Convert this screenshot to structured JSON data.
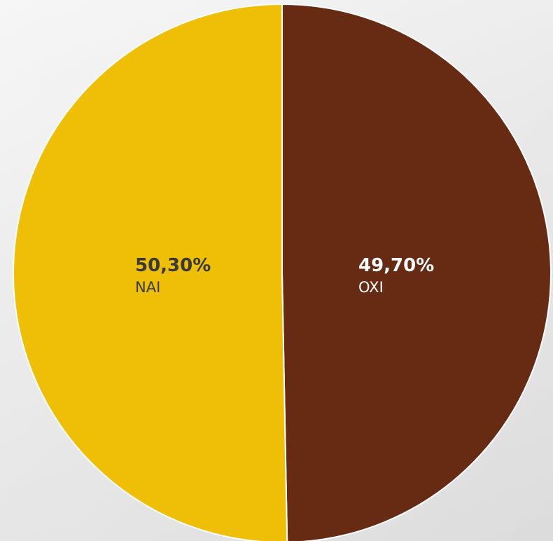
{
  "chart_data": {
    "type": "pie",
    "slices": [
      {
        "label": "NAI",
        "value": 50.3,
        "value_label": "50,30%",
        "color": "#EFBE07",
        "text_color": "#3a3a3a"
      },
      {
        "label": "OXI",
        "value": 49.7,
        "value_label": "49,70%",
        "color": "#672A12",
        "text_color": "#ffffff"
      }
    ],
    "legend": "none",
    "start_angle_direction": "clockwise-from-top (OXI first)",
    "background_color": "#e8e8e8"
  }
}
